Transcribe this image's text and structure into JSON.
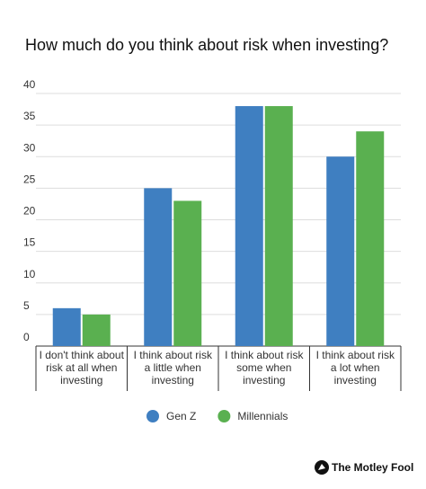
{
  "chart_data": {
    "type": "bar",
    "title": "How much do you think about risk when investing?",
    "categories": [
      "I don't think about risk at all when investing",
      "I think about risk a little when investing",
      "I think about risk some when investing",
      "I think about risk a lot when investing"
    ],
    "series": [
      {
        "name": "Gen Z",
        "color": "#3f7fc1",
        "values": [
          6,
          25,
          38,
          30
        ]
      },
      {
        "name": "Millennials",
        "color": "#5ab050",
        "values": [
          5,
          23,
          38,
          34
        ]
      }
    ],
    "ylim": [
      0,
      40
    ],
    "yticks": [
      0,
      5,
      10,
      15,
      20,
      25,
      30,
      35,
      40
    ],
    "grid": true,
    "legend": "bottom"
  },
  "footer": {
    "brand": "The Motley Fool"
  }
}
